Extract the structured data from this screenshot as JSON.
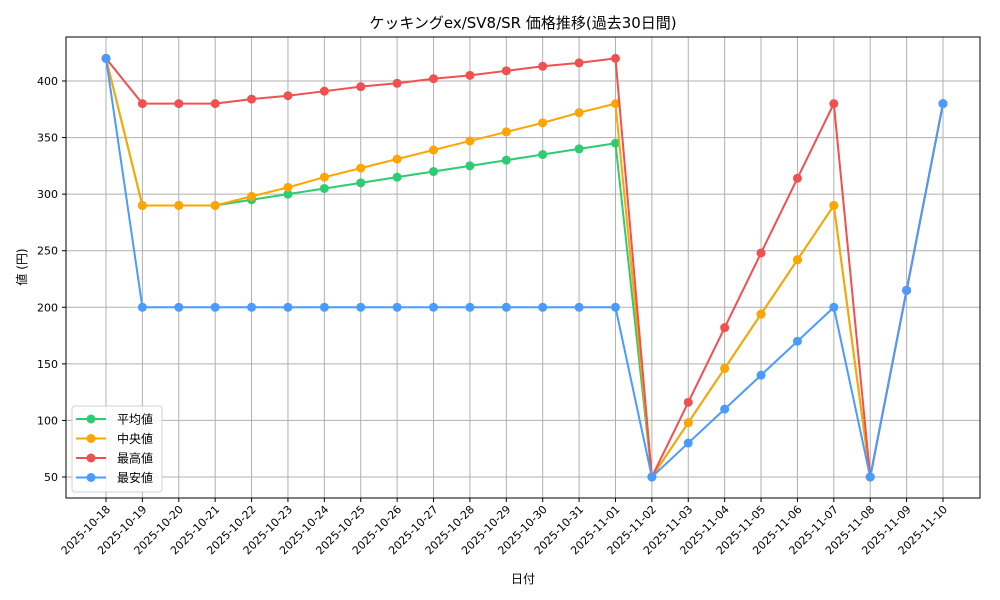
{
  "chart_data": {
    "type": "line",
    "title": "ケッキングex/SV8/SR 価格推移(過去30日間)",
    "xlabel": "日付",
    "ylabel": "値 (円)",
    "ylim": [
      32,
      438
    ],
    "yticks": [
      50,
      100,
      150,
      200,
      250,
      300,
      350,
      400
    ],
    "grid": true,
    "legend_position": "lower left",
    "categories": [
      "2025-10-18",
      "2025-10-19",
      "2025-10-20",
      "2025-10-21",
      "2025-10-22",
      "2025-10-23",
      "2025-10-24",
      "2025-10-25",
      "2025-10-26",
      "2025-10-27",
      "2025-10-28",
      "2025-10-29",
      "2025-10-30",
      "2025-10-31",
      "2025-11-01",
      "2025-11-02",
      "2025-11-03",
      "2025-11-04",
      "2025-11-05",
      "2025-11-06",
      "2025-11-07",
      "2025-11-08",
      "2025-11-09",
      "2025-11-10"
    ],
    "series": [
      {
        "name": "平均値",
        "color": "#2ecc71",
        "values": [
          420,
          290,
          290,
          290,
          295,
          300,
          305,
          310,
          315,
          320,
          325,
          330,
          335,
          340,
          345,
          50,
          98,
          146,
          194,
          242,
          290,
          50,
          215,
          380
        ]
      },
      {
        "name": "中央値",
        "color": "#ffa500",
        "values": [
          420,
          290,
          290,
          290,
          298,
          306,
          315,
          323,
          331,
          339,
          347,
          355,
          363,
          372,
          380,
          50,
          98,
          146,
          194,
          242,
          290,
          50,
          215,
          380
        ]
      },
      {
        "name": "最高値",
        "color": "#f05050",
        "values": [
          420,
          380,
          380,
          380,
          384,
          387,
          391,
          395,
          398,
          402,
          405,
          409,
          413,
          416,
          420,
          50,
          116,
          182,
          248,
          314,
          380,
          50,
          215,
          380
        ]
      },
      {
        "name": "最安値",
        "color": "#4a9bff",
        "values": [
          420,
          200,
          200,
          200,
          200,
          200,
          200,
          200,
          200,
          200,
          200,
          200,
          200,
          200,
          200,
          50,
          80,
          110,
          140,
          170,
          200,
          50,
          215,
          380
        ]
      }
    ]
  }
}
